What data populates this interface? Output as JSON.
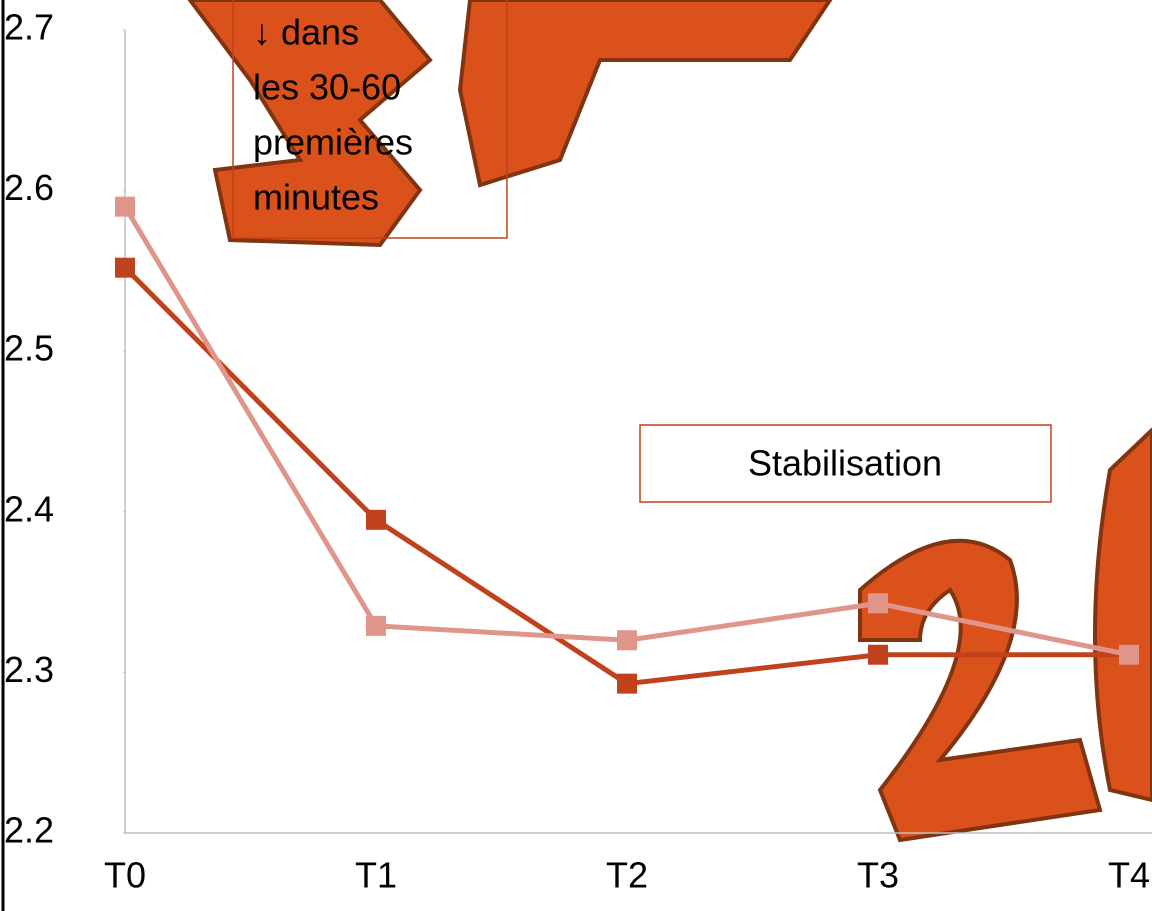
{
  "chart_data": {
    "type": "line",
    "categories": [
      "T0",
      "T1",
      "T2",
      "T3",
      "T4"
    ],
    "series": [
      {
        "color": "#c0421c",
        "values": [
          2.552,
          2.395,
          2.293,
          2.311,
          2.311
        ]
      },
      {
        "color": "#e0958a",
        "values": [
          2.59,
          2.329,
          2.32,
          2.343,
          2.311
        ]
      }
    ],
    "ylim": [
      2.2,
      2.7
    ],
    "yticks": [
      2.2,
      2.3,
      2.4,
      2.5,
      2.6,
      2.7
    ],
    "annotations": [
      {
        "lines": [
          "↓ dans",
          "les 30-60",
          "premières",
          "minutes"
        ]
      },
      {
        "lines": [
          "Stabilisation"
        ]
      }
    ]
  }
}
